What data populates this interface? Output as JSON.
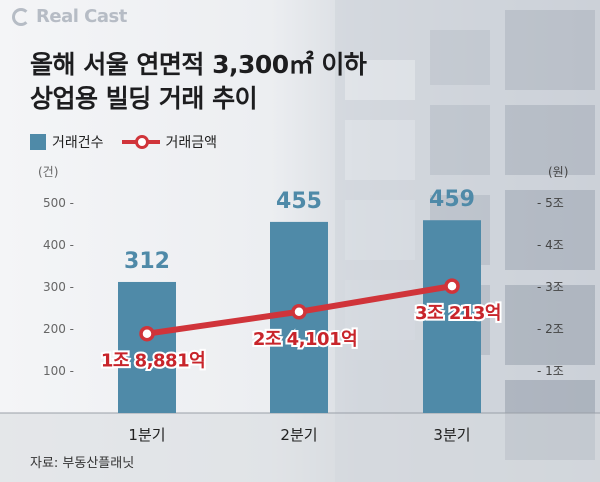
{
  "brand": {
    "name": "Real Cast"
  },
  "title": {
    "line1": "올해 서울 연면적 3,300㎡ 이하",
    "line2": "상업용 빌딩 거래 추이"
  },
  "legend": {
    "bar_label": "거래건수",
    "line_label": "거래금액"
  },
  "source": "자료: 부동산플래닛",
  "colors": {
    "bar": "#4f8aa8",
    "line": "#d0343a",
    "bar_label": "#4f8aa8",
    "line_label": "#c8252b"
  },
  "chart_data": {
    "type": "bar",
    "categories": [
      "1분기",
      "2분기",
      "3분기"
    ],
    "series": [
      {
        "name": "거래건수",
        "type": "bar",
        "axis": "left",
        "values": [
          312,
          455,
          459
        ],
        "labels": [
          "312",
          "455",
          "459"
        ]
      },
      {
        "name": "거래금액",
        "type": "line",
        "axis": "right",
        "values": [
          1.8881,
          2.4101,
          3.0213
        ],
        "labels": [
          "1조 8,881억",
          "2조 4,101억",
          "3조 213억"
        ]
      }
    ],
    "y_left": {
      "unit": "(건)",
      "ylim": [
        0,
        500
      ],
      "ticks": [
        100,
        200,
        300,
        400,
        500
      ],
      "tick_labels": [
        "100 -",
        "200 -",
        "300 -",
        "400 -",
        "500 -"
      ]
    },
    "y_right": {
      "unit": "(원)",
      "ylim": [
        0,
        5
      ],
      "ticks": [
        1,
        2,
        3,
        4,
        5
      ],
      "tick_labels": [
        "- 1조",
        "- 2조",
        "- 3조",
        "- 4조",
        "- 5조"
      ]
    },
    "grid": false,
    "legend": "top-left"
  }
}
